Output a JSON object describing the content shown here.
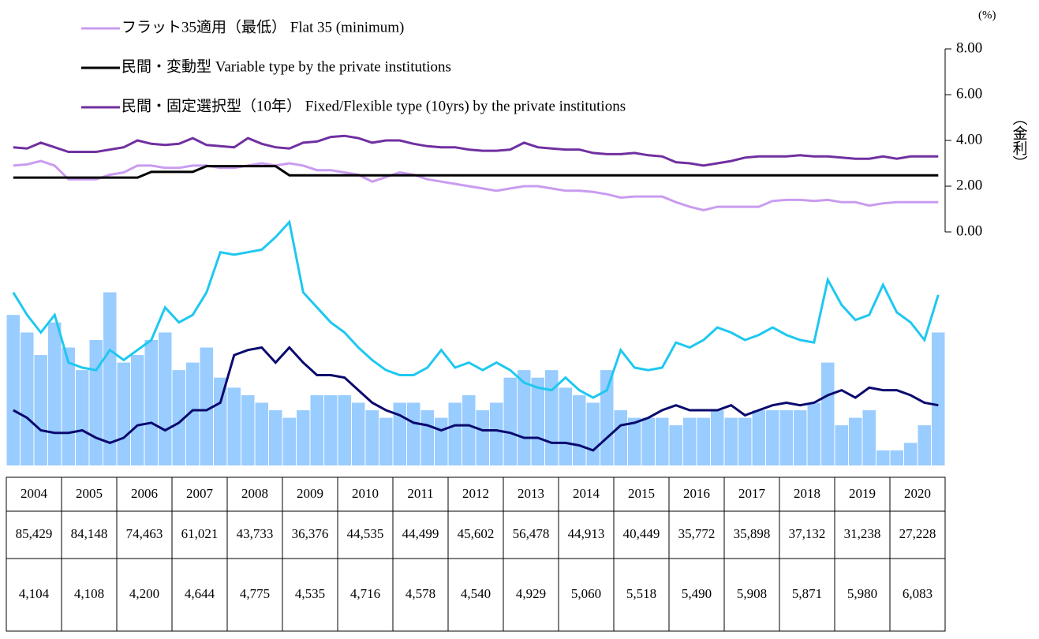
{
  "chart_data": [
    {
      "type": "line",
      "y2label": "(%)",
      "y2title": "（金利）",
      "y2lim": [
        0,
        8
      ],
      "y2ticks": [
        {
          "value": 0,
          "label": "0.00"
        },
        {
          "value": 2,
          "label": "2.00"
        },
        {
          "value": 4,
          "label": "4.00"
        },
        {
          "value": 6,
          "label": "6.00"
        },
        {
          "value": 8,
          "label": "8.00"
        }
      ],
      "series": [
        {
          "name": "フラット35適用（最低） Flat 35 (minimum)",
          "color": "#c99cf0",
          "axis": "y2",
          "values": [
            2.9,
            2.95,
            3.1,
            2.9,
            2.3,
            2.3,
            2.3,
            2.5,
            2.6,
            2.9,
            2.9,
            2.8,
            2.8,
            2.9,
            2.9,
            2.8,
            2.8,
            2.9,
            3.0,
            2.9,
            3.0,
            2.9,
            2.7,
            2.7,
            2.6,
            2.5,
            2.2,
            2.4,
            2.6,
            2.5,
            2.3,
            2.2,
            2.1,
            2.0,
            1.9,
            1.8,
            1.9,
            2.0,
            2.0,
            1.9,
            1.8,
            1.8,
            1.75,
            1.65,
            1.5,
            1.55,
            1.55,
            1.55,
            1.3,
            1.1,
            0.95,
            1.1,
            1.1,
            1.1,
            1.1,
            1.35,
            1.4,
            1.4,
            1.35,
            1.4,
            1.3,
            1.3,
            1.15,
            1.25,
            1.3,
            1.3,
            1.3,
            1.3
          ]
        },
        {
          "name": "民間・変動型 Variable type by the private institutions",
          "color": "#000000",
          "axis": "y2",
          "values": [
            2.375,
            2.375,
            2.375,
            2.375,
            2.375,
            2.375,
            2.375,
            2.375,
            2.375,
            2.375,
            2.625,
            2.625,
            2.625,
            2.625,
            2.875,
            2.875,
            2.875,
            2.875,
            2.875,
            2.875,
            2.475,
            2.475,
            2.475,
            2.475,
            2.475,
            2.475,
            2.475,
            2.475,
            2.475,
            2.475,
            2.475,
            2.475,
            2.475,
            2.475,
            2.475,
            2.475,
            2.475,
            2.475,
            2.475,
            2.475,
            2.475,
            2.475,
            2.475,
            2.475,
            2.475,
            2.475,
            2.475,
            2.475,
            2.475,
            2.475,
            2.475,
            2.475,
            2.475,
            2.475,
            2.475,
            2.475,
            2.475,
            2.475,
            2.475,
            2.475,
            2.475,
            2.475,
            2.475,
            2.475,
            2.475,
            2.475,
            2.475,
            2.475
          ]
        },
        {
          "name": "民間・固定選択型（10年） Fixed/Flexible type (10yrs) by the private institutions",
          "color": "#7030a0",
          "axis": "y2",
          "values": [
            3.7,
            3.65,
            3.9,
            3.7,
            3.5,
            3.5,
            3.5,
            3.6,
            3.7,
            4.0,
            3.85,
            3.8,
            3.85,
            4.1,
            3.8,
            3.75,
            3.7,
            4.1,
            3.85,
            3.7,
            3.65,
            3.9,
            3.95,
            4.15,
            4.2,
            4.1,
            3.9,
            4.0,
            4.0,
            3.85,
            3.75,
            3.7,
            3.7,
            3.6,
            3.55,
            3.55,
            3.6,
            3.9,
            3.7,
            3.65,
            3.6,
            3.6,
            3.45,
            3.4,
            3.4,
            3.45,
            3.35,
            3.3,
            3.05,
            3.0,
            2.9,
            3.0,
            3.1,
            3.25,
            3.3,
            3.3,
            3.3,
            3.35,
            3.3,
            3.3,
            3.25,
            3.2,
            3.2,
            3.3,
            3.2,
            3.3,
            3.3,
            3.3
          ]
        }
      ]
    },
    {
      "type": "bar",
      "ylim": [
        0,
        100
      ],
      "color": "#99ccff",
      "values": [
        60,
        53,
        44,
        57,
        47,
        38,
        50,
        69,
        41,
        44,
        50,
        53,
        38,
        41,
        47,
        35,
        31,
        28,
        25,
        22,
        19,
        22,
        28,
        28,
        28,
        25,
        22,
        19,
        25,
        25,
        22,
        19,
        25,
        28,
        22,
        25,
        35,
        38,
        35,
        38,
        31,
        28,
        25,
        38,
        22,
        19,
        19,
        19,
        16,
        19,
        19,
        22,
        19,
        19,
        22,
        22,
        22,
        22,
        25,
        41,
        16,
        19,
        22,
        6,
        6,
        9,
        16,
        53
      ],
      "series": [
        {
          "color": "#1ec8f0",
          "values": [
            69,
            60,
            53,
            60,
            41,
            39,
            38,
            46,
            42,
            46,
            50,
            63,
            57,
            60,
            69,
            85,
            84,
            85,
            86,
            91,
            97,
            69,
            63,
            57,
            53,
            47,
            42,
            38,
            36,
            36,
            39,
            46,
            39,
            41,
            38,
            41,
            38,
            33,
            31,
            30,
            35,
            30,
            27,
            30,
            46,
            39,
            38,
            39,
            49,
            47,
            50,
            55,
            53,
            50,
            52,
            55,
            52,
            50,
            49,
            74,
            64,
            58,
            60,
            72,
            61,
            57,
            50,
            68
          ]
        },
        {
          "color": "#0a0a6e",
          "values": [
            22,
            19,
            14,
            13,
            13,
            14,
            11,
            9,
            11,
            16,
            17,
            14,
            17,
            22,
            22,
            25,
            44,
            46,
            47,
            41,
            47,
            41,
            36,
            36,
            35,
            30,
            25,
            22,
            20,
            17,
            16,
            14,
            16,
            16,
            14,
            14,
            13,
            11,
            11,
            9,
            9,
            8,
            6,
            11,
            16,
            17,
            19,
            22,
            24,
            22,
            22,
            22,
            24,
            20,
            22,
            24,
            25,
            24,
            25,
            28,
            30,
            27,
            31,
            30,
            30,
            28,
            25,
            24
          ]
        }
      ]
    }
  ],
  "table": {
    "header": [
      "2004",
      "2005",
      "2006",
      "2007",
      "2008",
      "2009",
      "2010",
      "2011",
      "2012",
      "2013",
      "2014",
      "2015",
      "2016",
      "2017",
      "2018",
      "2019",
      "2020"
    ],
    "rows": [
      [
        "85,429",
        "84,148",
        "74,463",
        "61,021",
        "43,733",
        "36,376",
        "44,535",
        "44,499",
        "45,602",
        "56,478",
        "44,913",
        "40,449",
        "35,772",
        "35,898",
        "37,132",
        "31,238",
        "27,228"
      ],
      [
        "4,104",
        "4,108",
        "4,200",
        "4,644",
        "4,775",
        "4,535",
        "4,716",
        "4,578",
        "4,540",
        "4,929",
        "5,060",
        "5,518",
        "5,490",
        "5,908",
        "5,871",
        "5,980",
        "6,083"
      ]
    ]
  }
}
